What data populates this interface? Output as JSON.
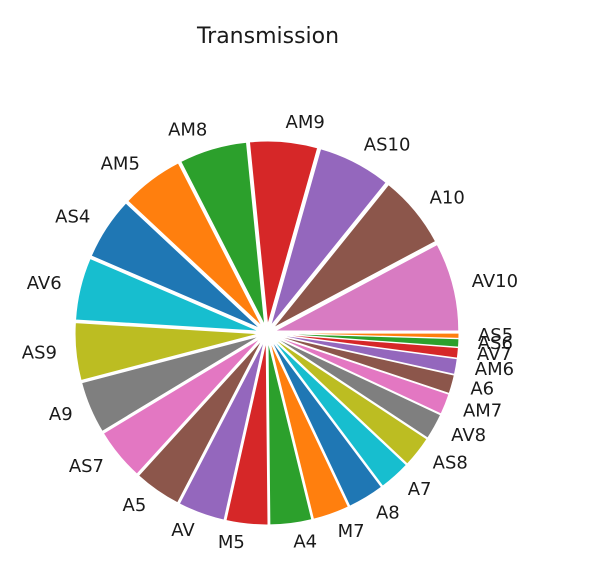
{
  "chart_data": {
    "type": "pie",
    "title": "Transmission",
    "categories": [
      "AV10",
      "A10",
      "AS10",
      "AM9",
      "AM8",
      "AM5",
      "AS4",
      "AV6",
      "AS9",
      "A9",
      "AS7",
      "A5",
      "AV",
      "M5",
      "A4",
      "M7",
      "A8",
      "A7",
      "AS8",
      "AV8",
      "AM7",
      "A6",
      "AM6",
      "AV7",
      "AS6",
      "AS5"
    ],
    "values": [
      8.5,
      7.0,
      7.0,
      6.5,
      6.5,
      6.0,
      6.0,
      6.0,
      5.5,
      5.0,
      5.0,
      4.5,
      4.5,
      4.0,
      4.0,
      3.5,
      3.5,
      3.0,
      3.0,
      2.5,
      2.0,
      1.8,
      1.5,
      1.0,
      0.8,
      0.5
    ],
    "colors": [
      "#d87bc2",
      "#8c564b",
      "#9467bd",
      "#d62728",
      "#2ca02c",
      "#ff7f0e",
      "#1f77b4",
      "#17becf",
      "#bcbd22",
      "#7f7f7f",
      "#e377c2",
      "#8c564b",
      "#9467bd",
      "#d62728",
      "#2ca02c",
      "#ff7f0e",
      "#1f77b4",
      "#17becf",
      "#bcbd22",
      "#7f7f7f",
      "#e377c2",
      "#8c564b",
      "#9467bd",
      "#d62728",
      "#2ca02c",
      "#ff7f0e"
    ],
    "start_angle_deg": 0,
    "direction": "counterclockwise",
    "explode": "all",
    "legend": "none"
  }
}
